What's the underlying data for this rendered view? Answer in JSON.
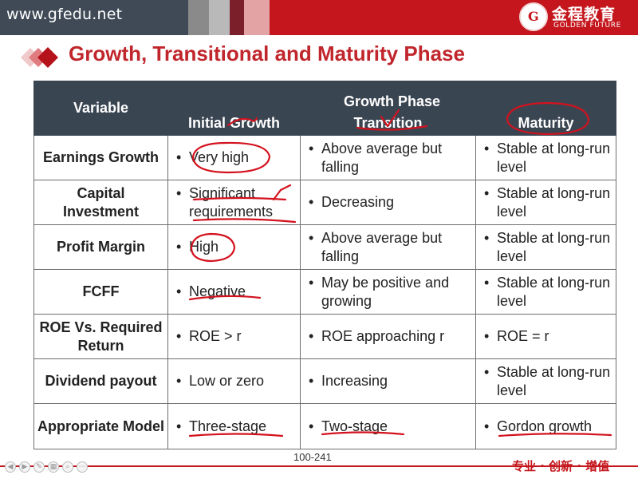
{
  "header": {
    "url": "www.gfedu.net",
    "logo_cn": "金程教育",
    "logo_en": "GOLDEN FUTURE",
    "logo_mark": "G"
  },
  "title": "Growth, Transitional and Maturity Phase",
  "table": {
    "variable_header": "Variable",
    "group_header": "Growth  Phase",
    "phase_headers": [
      "Initial Growth",
      "Transition",
      "Maturity"
    ],
    "rows": [
      {
        "variable": "Earnings Growth",
        "initial": "Very high",
        "transition": "Above average but falling",
        "maturity": "Stable at long-run level"
      },
      {
        "variable": "Capital Investment",
        "initial": "Significant requirements",
        "transition": "Decreasing",
        "maturity": "Stable at long-run level"
      },
      {
        "variable": "Profit Margin",
        "initial": "High",
        "transition": "Above average but falling",
        "maturity": "Stable at long-run level"
      },
      {
        "variable": "FCFF",
        "initial": "Negative",
        "transition": "May be positive and growing",
        "maturity": "Stable at long-run level"
      },
      {
        "variable": "ROE Vs. Required Return",
        "initial": "ROE > r",
        "transition": "ROE approaching r",
        "maturity": "ROE = r"
      },
      {
        "variable": "Dividend payout",
        "initial": "Low or zero",
        "transition": "Increasing",
        "maturity": "Stable at long-run level"
      },
      {
        "variable": "Appropriate Model",
        "initial": "Three-stage",
        "transition": "Two-stage",
        "maturity": "Gordon growth"
      }
    ],
    "bullet": "•"
  },
  "footer": {
    "page_number": "100-241",
    "slogan": "专业 · 创新 · 增值"
  },
  "colors": {
    "brand_red": "#c4161c",
    "title_red": "#c0262c",
    "header_bg": "#3a4552",
    "annotation_red": "#d3121e"
  }
}
